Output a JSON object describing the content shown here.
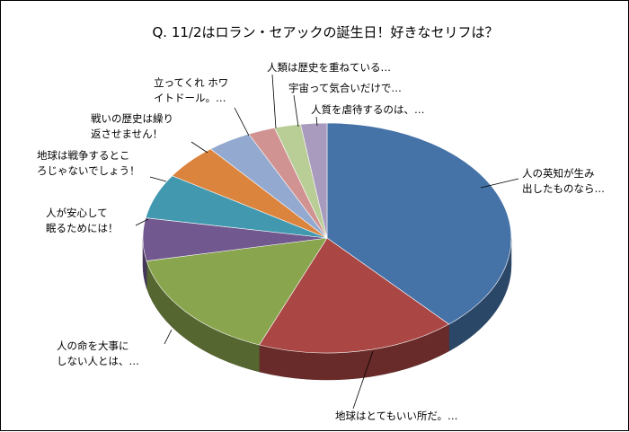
{
  "chart_data": {
    "type": "pie",
    "style": "3d",
    "title": "Q.  11/2はロラン・セアックの誕生日！好きなセリフは？",
    "legend": "none",
    "slices": [
      {
        "label_lines": [
          "人の英知が生み",
          "出したものなら…"
        ],
        "value": 38.5,
        "color": "#4572A7"
      },
      {
        "label_lines": [
          "地球はとてもいい所だ。…"
        ],
        "value": 17.5,
        "color": "#AA4643"
      },
      {
        "label_lines": [
          "人の命を大事に",
          "しない人とは、…"
        ],
        "value": 15.8,
        "color": "#89A54E"
      },
      {
        "label_lines": [
          "人が安心して",
          "眠るためには！"
        ],
        "value": 6.0,
        "color": "#71588F"
      },
      {
        "label_lines": [
          "地球は戦争するとこ",
          "ろじゃないでしょう！"
        ],
        "value": 6.3,
        "color": "#4198AF"
      },
      {
        "label_lines": [
          "戦いの歴史は繰り",
          "返させません！"
        ],
        "value": 5.0,
        "color": "#DB843D"
      },
      {
        "label_lines": [
          "立ってくれ ホワ",
          "イトドール。…"
        ],
        "value": 3.9,
        "color": "#93A9CF"
      },
      {
        "label_lines": [
          "人類は歴史を重ねている…"
        ],
        "value": 2.4,
        "color": "#D19392"
      },
      {
        "label_lines": [
          "宇宙って気合いだけで…"
        ],
        "value": 2.3,
        "color": "#B9CD96"
      },
      {
        "label_lines": [
          "人質を虐待するのは、…"
        ],
        "value": 2.3,
        "color": "#A99BBD"
      }
    ]
  }
}
